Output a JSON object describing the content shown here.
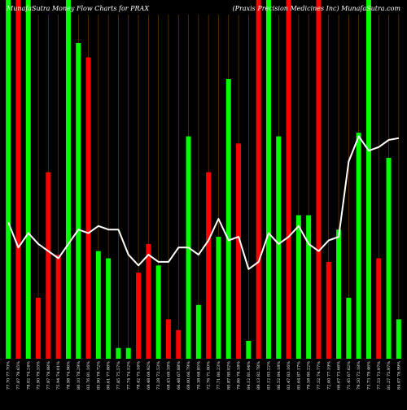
{
  "chart_data": {
    "type": "bar",
    "title_left": "MunafaSutra  Money Flow  Charts for PRAX",
    "title_right": "(Praxis Precision  Medicines  Inc) MunafaSutra.com",
    "ylim": [
      0,
      100
    ],
    "categories": [
      "Thu 06 Feb 2025",
      "Wed 05 Feb 2025",
      "Tue 04 Feb 2025",
      "Mon 03 Feb 2025",
      "Fri 31 Jan 2025",
      "Thu 30 Jan 2025",
      "Wed 29 Jan 2025",
      "Tue 28 Jan 2025",
      "Mon 27 Jan 2025",
      "Fri 24 Jan 2025",
      "Thu 23 Jan 2025",
      "Wed 22 Jan 2025",
      "Tue 21 Jan 2025",
      "Fri 17 Jan 2025",
      "Thu 16 Jan 2025",
      "Wed 15 Jan 2025",
      "Tue 14 Jan 2025",
      "Mon 13 Jan 2025",
      "Fri 10 Jan 2025",
      "Wed 08 Jan 2025",
      "Tue 07 Jan 2025",
      "Mon 06 Jan 2025",
      "Fri 03 Jan 2025",
      "Thu 02 Jan 2025",
      "Tue 31 Dec 2024",
      "Mon 30 Dec 2024",
      "Fri 27 Dec 2024",
      "Thu 26 Dec 2024",
      "Tue 24 Dec 2024",
      "Mon 23 Dec 2024",
      "Fri 20 Dec 2024",
      "Thu 19 Dec 2024",
      "Wed 18 Dec 2024",
      "Tue 17 Dec 2024",
      "Mon 16 Dec 2024",
      "Fri 13 Dec 2024",
      "Thu 12 Dec 2024",
      "Wed 11 Dec 2024",
      "Tue 10 Dec 2024",
      "Mon 09 Dec 2024"
    ],
    "tick_labels": [
      "77.70 77.70%",
      "77.87 78.65%",
      "78.02 74.24%",
      "75.90 79.55%",
      "77.97 78.88%",
      "75.94 74.01%",
      "78.98 74.96%",
      "80.10 78.29%",
      "83.76 81.16%",
      "85.90 78.72%",
      "80.61 77.88%",
      "77.85 75.57%",
      "77.74 74.52%",
      "78.42 75.16%",
      "69.48 69.92%",
      "73.28 72.53%",
      "68.43 69.18%",
      "66.48 67.88%",
      "69.00 66.79%",
      "70.38 68.85%",
      "72.76 71.80%",
      "77.71 80.23%",
      "80.87 80.02%",
      "79.86 78.18%",
      "84.12 81.04%",
      "89.13 82.78%",
      "83.12 83.22%",
      "86.52 84.18%",
      "83.47 83.16%",
      "85.64 87.17%",
      "79.58 80.22%",
      "77.52 74.77%",
      "72.60 77.19%",
      "66.67 73.66%",
      "71.45 67.62%",
      "79.50 72.18%",
      "73.73 79.46%",
      "77.53 73.97%",
      "81.27 75.97%",
      "84.07 76.99%"
    ],
    "bar_values": [
      100,
      100,
      100,
      17,
      52,
      29,
      100,
      88,
      84,
      30,
      28,
      3,
      3,
      24,
      32,
      26,
      11,
      8,
      62,
      15,
      52,
      34,
      78,
      60,
      5,
      100,
      100,
      62,
      100,
      40,
      40,
      100,
      27,
      36,
      17,
      63,
      100,
      28,
      56,
      11
    ],
    "bar_colors": [
      "green",
      "red",
      "green",
      "red",
      "red",
      "red",
      "green",
      "green",
      "red",
      "green",
      "green",
      "green",
      "green",
      "red",
      "red",
      "green",
      "red",
      "red",
      "green",
      "green",
      "red",
      "green",
      "green",
      "red",
      "green",
      "red",
      "green",
      "green",
      "red",
      "green",
      "green",
      "red",
      "red",
      "green",
      "green",
      "green",
      "green",
      "red",
      "green",
      "green"
    ],
    "line_values": [
      38,
      31,
      35,
      32,
      30,
      28,
      32,
      36,
      35,
      37,
      36,
      36,
      29,
      26,
      29,
      27,
      27,
      31,
      31,
      29,
      33,
      39,
      33,
      34,
      25,
      27,
      35,
      32,
      34,
      37,
      32,
      30,
      33,
      34,
      55,
      62,
      58,
      59,
      61,
      61.5
    ],
    "colors": {
      "green": "#00ff00",
      "red": "#ff0000",
      "line": "#ffffff",
      "gridline": "#7a4400",
      "background": "#000000"
    }
  }
}
